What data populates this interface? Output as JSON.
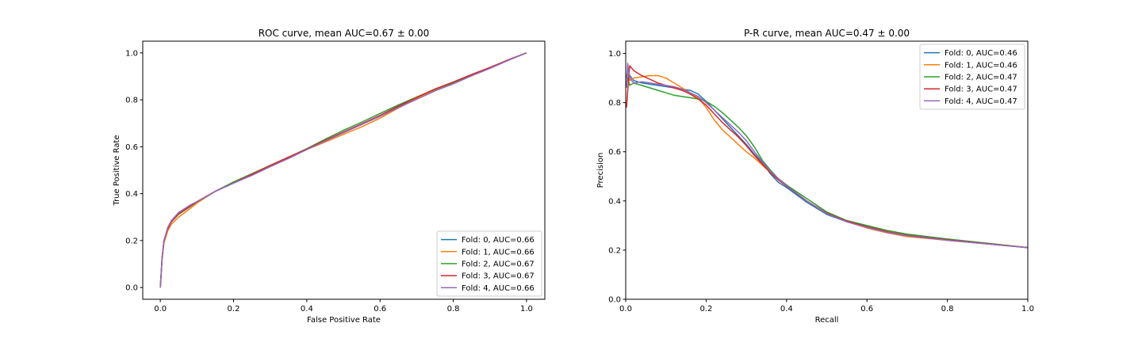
{
  "chart_data": [
    {
      "type": "line",
      "title": "ROC curve, mean AUC=0.67 ± 0.00",
      "xlabel": "False Positive Rate",
      "ylabel": "True Positive Rate",
      "xlim": [
        -0.048,
        1.05
      ],
      "ylim": [
        -0.05,
        1.05
      ],
      "xticks": [
        "0.0",
        "0.2",
        "0.4",
        "0.6",
        "0.8",
        "1.0"
      ],
      "yticks": [
        "0.0",
        "0.2",
        "0.4",
        "0.6",
        "0.8",
        "1.0"
      ],
      "grid": false,
      "legend_position": "bottom-right",
      "series": [
        {
          "name": "Fold: 0, AUC=0.66",
          "color": "#1f77b4",
          "x": [
            0,
            0.005,
            0.01,
            0.02,
            0.03,
            0.05,
            0.08,
            0.1,
            0.15,
            0.2,
            0.25,
            0.3,
            0.35,
            0.4,
            0.45,
            0.5,
            0.55,
            0.6,
            0.65,
            0.7,
            0.75,
            0.8,
            0.85,
            0.9,
            0.95,
            1.0
          ],
          "y": [
            0,
            0.13,
            0.2,
            0.25,
            0.28,
            0.315,
            0.345,
            0.365,
            0.41,
            0.445,
            0.48,
            0.52,
            0.555,
            0.59,
            0.625,
            0.66,
            0.695,
            0.73,
            0.77,
            0.805,
            0.84,
            0.87,
            0.905,
            0.935,
            0.97,
            1.0
          ]
        },
        {
          "name": "Fold: 1, AUC=0.66",
          "color": "#ff7f0e",
          "x": [
            0,
            0.005,
            0.01,
            0.02,
            0.03,
            0.05,
            0.08,
            0.1,
            0.15,
            0.2,
            0.25,
            0.3,
            0.35,
            0.4,
            0.45,
            0.5,
            0.55,
            0.6,
            0.65,
            0.7,
            0.75,
            0.8,
            0.85,
            0.9,
            0.95,
            1.0
          ],
          "y": [
            0,
            0.12,
            0.19,
            0.24,
            0.27,
            0.3,
            0.335,
            0.36,
            0.41,
            0.448,
            0.485,
            0.52,
            0.555,
            0.588,
            0.62,
            0.653,
            0.685,
            0.722,
            0.765,
            0.805,
            0.842,
            0.873,
            0.906,
            0.937,
            0.97,
            1.0
          ]
        },
        {
          "name": "Fold: 2, AUC=0.67",
          "color": "#2ca02c",
          "x": [
            0,
            0.005,
            0.01,
            0.02,
            0.03,
            0.05,
            0.08,
            0.1,
            0.15,
            0.2,
            0.25,
            0.3,
            0.35,
            0.4,
            0.45,
            0.5,
            0.55,
            0.6,
            0.65,
            0.7,
            0.75,
            0.8,
            0.85,
            0.9,
            0.95,
            1.0
          ],
          "y": [
            0,
            0.13,
            0.2,
            0.25,
            0.28,
            0.312,
            0.343,
            0.365,
            0.41,
            0.45,
            0.485,
            0.52,
            0.555,
            0.592,
            0.632,
            0.67,
            0.705,
            0.742,
            0.778,
            0.812,
            0.845,
            0.874,
            0.906,
            0.937,
            0.969,
            1.0
          ]
        },
        {
          "name": "Fold: 3, AUC=0.67",
          "color": "#d62728",
          "x": [
            0,
            0.005,
            0.01,
            0.02,
            0.03,
            0.05,
            0.08,
            0.1,
            0.15,
            0.2,
            0.25,
            0.3,
            0.35,
            0.4,
            0.45,
            0.5,
            0.55,
            0.6,
            0.65,
            0.7,
            0.75,
            0.8,
            0.85,
            0.9,
            0.95,
            1.0
          ],
          "y": [
            0,
            0.13,
            0.2,
            0.25,
            0.28,
            0.315,
            0.345,
            0.366,
            0.41,
            0.446,
            0.482,
            0.52,
            0.556,
            0.59,
            0.627,
            0.663,
            0.698,
            0.734,
            0.773,
            0.81,
            0.846,
            0.876,
            0.908,
            0.938,
            0.97,
            1.0
          ]
        },
        {
          "name": "Fold: 4, AUC=0.66",
          "color": "#9467bd",
          "x": [
            0,
            0.005,
            0.01,
            0.02,
            0.03,
            0.05,
            0.08,
            0.1,
            0.15,
            0.2,
            0.25,
            0.3,
            0.35,
            0.4,
            0.45,
            0.5,
            0.55,
            0.6,
            0.65,
            0.7,
            0.75,
            0.8,
            0.85,
            0.9,
            0.95,
            1.0
          ],
          "y": [
            0,
            0.13,
            0.2,
            0.255,
            0.285,
            0.32,
            0.35,
            0.366,
            0.41,
            0.445,
            0.478,
            0.515,
            0.55,
            0.588,
            0.624,
            0.66,
            0.695,
            0.73,
            0.767,
            0.802,
            0.838,
            0.868,
            0.902,
            0.934,
            0.968,
            1.0
          ]
        }
      ]
    },
    {
      "type": "line",
      "title": "P-R curve, mean AUC=0.47 ± 0.00",
      "xlabel": "Recall",
      "ylabel": "Precision",
      "xlim": [
        0,
        1.0
      ],
      "ylim": [
        0,
        1.05
      ],
      "xticks": [
        "0.0",
        "0.2",
        "0.4",
        "0.6",
        "0.8",
        "1.0"
      ],
      "yticks": [
        "0.0",
        "0.2",
        "0.4",
        "0.6",
        "0.8",
        "1.0"
      ],
      "grid": false,
      "legend_position": "top-right",
      "series": [
        {
          "name": "Fold: 0, AUC=0.46",
          "color": "#1f77b4",
          "x": [
            0.002,
            0.005,
            0.01,
            0.02,
            0.04,
            0.06,
            0.08,
            0.1,
            0.12,
            0.14,
            0.16,
            0.18,
            0.2,
            0.22,
            0.24,
            0.26,
            0.28,
            0.3,
            0.32,
            0.34,
            0.36,
            0.38,
            0.4,
            0.45,
            0.5,
            0.55,
            0.6,
            0.65,
            0.7,
            0.8,
            0.9,
            1.0
          ],
          "y": [
            0.9,
            0.94,
            0.91,
            0.89,
            0.88,
            0.875,
            0.87,
            0.865,
            0.86,
            0.855,
            0.85,
            0.835,
            0.805,
            0.77,
            0.735,
            0.7,
            0.665,
            0.63,
            0.59,
            0.555,
            0.51,
            0.475,
            0.455,
            0.395,
            0.345,
            0.315,
            0.295,
            0.275,
            0.26,
            0.24,
            0.225,
            0.21
          ]
        },
        {
          "name": "Fold: 1, AUC=0.46",
          "color": "#ff7f0e",
          "x": [
            0.002,
            0.005,
            0.01,
            0.02,
            0.04,
            0.06,
            0.08,
            0.1,
            0.12,
            0.14,
            0.16,
            0.18,
            0.2,
            0.22,
            0.24,
            0.26,
            0.28,
            0.3,
            0.32,
            0.34,
            0.36,
            0.38,
            0.4,
            0.45,
            0.5,
            0.55,
            0.6,
            0.65,
            0.7,
            0.8,
            0.9,
            1.0
          ],
          "y": [
            0.87,
            0.92,
            0.89,
            0.9,
            0.905,
            0.91,
            0.91,
            0.9,
            0.88,
            0.86,
            0.84,
            0.82,
            0.78,
            0.73,
            0.69,
            0.66,
            0.63,
            0.6,
            0.575,
            0.545,
            0.515,
            0.49,
            0.465,
            0.4,
            0.35,
            0.315,
            0.29,
            0.27,
            0.255,
            0.24,
            0.225,
            0.21
          ]
        },
        {
          "name": "Fold: 2, AUC=0.47",
          "color": "#2ca02c",
          "x": [
            0.002,
            0.005,
            0.01,
            0.02,
            0.04,
            0.06,
            0.08,
            0.1,
            0.12,
            0.14,
            0.16,
            0.18,
            0.2,
            0.22,
            0.24,
            0.26,
            0.28,
            0.3,
            0.32,
            0.34,
            0.36,
            0.38,
            0.4,
            0.45,
            0.5,
            0.55,
            0.6,
            0.65,
            0.7,
            0.8,
            0.9,
            1.0
          ],
          "y": [
            0.88,
            0.9,
            0.87,
            0.88,
            0.87,
            0.86,
            0.85,
            0.84,
            0.83,
            0.825,
            0.82,
            0.815,
            0.805,
            0.785,
            0.76,
            0.73,
            0.7,
            0.665,
            0.62,
            0.565,
            0.525,
            0.49,
            0.465,
            0.41,
            0.355,
            0.32,
            0.3,
            0.28,
            0.265,
            0.245,
            0.228,
            0.21
          ]
        },
        {
          "name": "Fold: 3, AUC=0.47",
          "color": "#d62728",
          "x": [
            0.002,
            0.005,
            0.01,
            0.02,
            0.04,
            0.06,
            0.08,
            0.1,
            0.12,
            0.14,
            0.16,
            0.18,
            0.2,
            0.22,
            0.24,
            0.26,
            0.28,
            0.3,
            0.32,
            0.34,
            0.36,
            0.38,
            0.4,
            0.45,
            0.5,
            0.55,
            0.6,
            0.65,
            0.7,
            0.8,
            0.9,
            1.0
          ],
          "y": [
            0.78,
            0.85,
            0.95,
            0.93,
            0.91,
            0.895,
            0.88,
            0.87,
            0.86,
            0.85,
            0.835,
            0.815,
            0.79,
            0.755,
            0.72,
            0.69,
            0.66,
            0.625,
            0.585,
            0.55,
            0.515,
            0.485,
            0.46,
            0.4,
            0.35,
            0.318,
            0.295,
            0.275,
            0.26,
            0.242,
            0.226,
            0.21
          ]
        },
        {
          "name": "Fold: 4, AUC=0.47",
          "color": "#9467bd",
          "x": [
            0.002,
            0.005,
            0.01,
            0.02,
            0.04,
            0.06,
            0.08,
            0.1,
            0.12,
            0.14,
            0.16,
            0.18,
            0.2,
            0.22,
            0.24,
            0.26,
            0.28,
            0.3,
            0.32,
            0.34,
            0.36,
            0.38,
            0.4,
            0.45,
            0.5,
            0.55,
            0.6,
            0.65,
            0.7,
            0.8,
            0.9,
            1.0
          ],
          "y": [
            0.86,
            0.96,
            0.9,
            0.88,
            0.885,
            0.88,
            0.875,
            0.87,
            0.865,
            0.855,
            0.84,
            0.825,
            0.8,
            0.77,
            0.74,
            0.71,
            0.68,
            0.645,
            0.6,
            0.56,
            0.52,
            0.49,
            0.462,
            0.4,
            0.348,
            0.315,
            0.292,
            0.272,
            0.258,
            0.24,
            0.225,
            0.21
          ]
        }
      ]
    }
  ]
}
